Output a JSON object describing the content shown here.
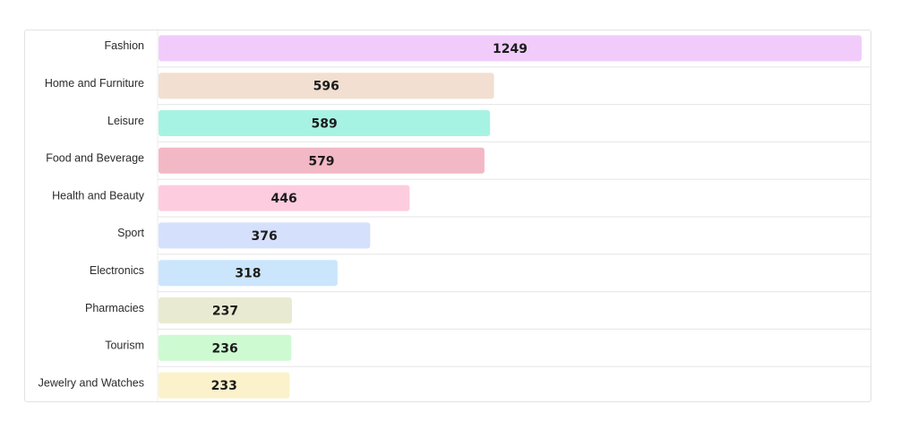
{
  "chart_data": {
    "type": "bar",
    "orientation": "horizontal",
    "title": "",
    "xlabel": "",
    "ylabel": "",
    "categories": [
      "Fashion",
      "Home and Furniture",
      "Leisure",
      "Food and Beverage",
      "Health and Beauty",
      "Sport",
      "Electronics",
      "Pharmacies",
      "Tourism",
      "Jewelry and Watches"
    ],
    "values": [
      1249,
      596,
      589,
      579,
      446,
      376,
      318,
      237,
      236,
      233
    ],
    "colors": [
      "#f1ccfb",
      "#f2dfd1",
      "#a7f3e3",
      "#f3b8c5",
      "#fdccdf",
      "#d5e0fc",
      "#cbe5fd",
      "#e8ebd1",
      "#cefad2",
      "#fbf2cb"
    ],
    "xlim": [
      0,
      1249
    ],
    "grid": "horizontal row separators",
    "legend": "none",
    "data_labels": "centered inside bars"
  }
}
